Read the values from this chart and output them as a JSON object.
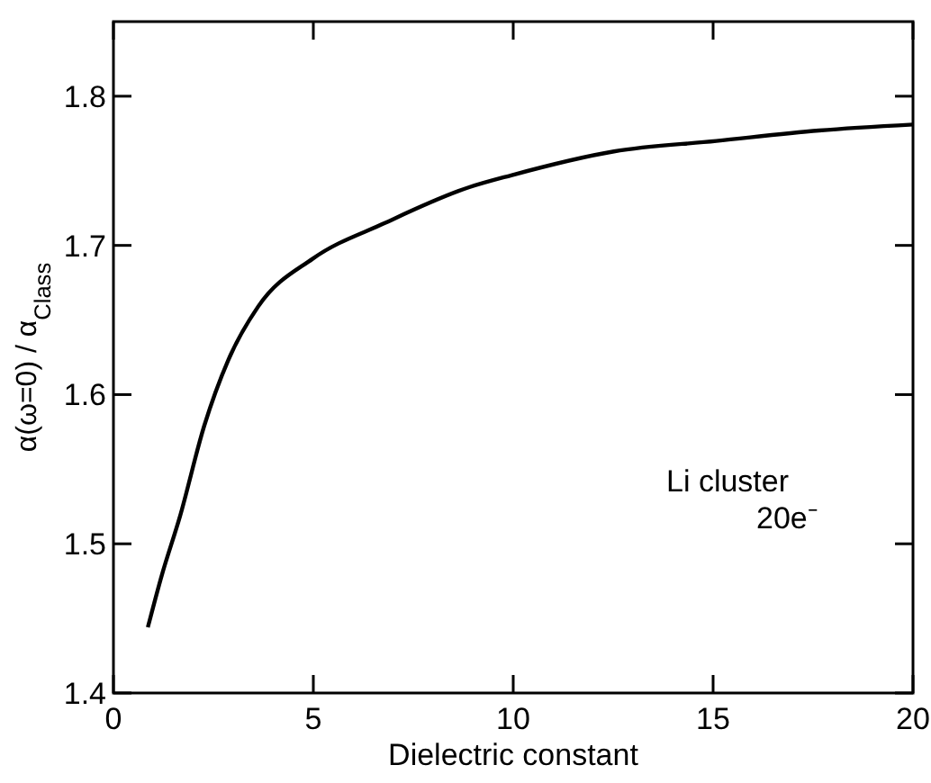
{
  "chart_data": {
    "type": "line",
    "xlabel": "Dielectric constant",
    "ylabel": "α(ω=0) / α$_{Class}$",
    "annotations": [
      "Li cluster\n20e⁻"
    ],
    "series": [
      {
        "color": "#000000",
        "x": [
          0.86,
          1.21,
          1.66,
          2.27,
          2.87,
          3.62,
          4.98,
          6.79,
          8.9,
          9.95,
          12.52,
          15.08,
          17.65,
          20
        ],
        "values": [
          1.444,
          1.479,
          1.518,
          1.579,
          1.623,
          1.659,
          1.691,
          1.715,
          1.739,
          1.747,
          1.763,
          1.77,
          1.777,
          1.781
        ]
      }
    ],
    "xlim": [
      0,
      20
    ],
    "ylim": [
      1.4,
      1.85
    ],
    "xticks": [
      0,
      5,
      10,
      15,
      20
    ],
    "yticks": [
      1.4,
      1.5,
      1.6,
      1.7,
      1.8
    ],
    "grid": false,
    "marker": "none",
    "line_style": "solid"
  }
}
